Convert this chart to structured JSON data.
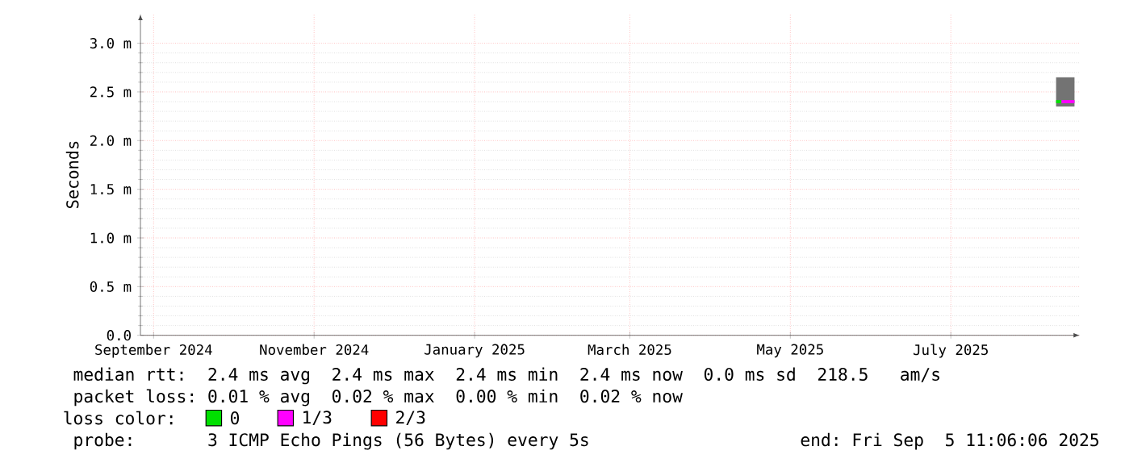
{
  "chart_data": {
    "type": "line",
    "ylabel": "Seconds",
    "series": [
      {
        "name": "0",
        "color": "#00e000",
        "x": [
          "2025-08-10",
          "2025-08-12"
        ],
        "values": [
          2.4,
          2.4
        ]
      },
      {
        "name": "1/3",
        "color": "#ff00ff",
        "x": [
          "2025-08-10",
          "2025-08-12",
          "2025-08-17"
        ],
        "values": [
          null,
          2.4,
          2.4
        ],
        "lower": [
          2.35,
          2.35,
          2.35
        ],
        "upper": [
          2.65,
          2.65,
          2.65
        ]
      },
      {
        "name": "2/3",
        "color": "#ff0000"
      }
    ],
    "xlim": [
      "2024-08-27",
      "2025-08-19"
    ],
    "xticks": [
      {
        "value": "2024-09-01",
        "label": "September 2024"
      },
      {
        "value": "2024-11-01",
        "label": "November 2024"
      },
      {
        "value": "2025-01-01",
        "label": "January 2025"
      },
      {
        "value": "2025-03-01",
        "label": "March 2025"
      },
      {
        "value": "2025-05-01",
        "label": "May 2025"
      },
      {
        "value": "2025-07-01",
        "label": "July 2025"
      }
    ],
    "ylim": [
      0,
      3.3
    ],
    "yticks": [
      {
        "value": 0,
        "label": "0.0"
      },
      {
        "value": 0.5,
        "label": "0.5 m"
      },
      {
        "value": 1.0,
        "label": "1.0 m"
      },
      {
        "value": 1.5,
        "label": "1.5 m"
      },
      {
        "value": 2.0,
        "label": "2.0 m"
      },
      {
        "value": 2.5,
        "label": "2.5 m"
      },
      {
        "value": 3.0,
        "label": "3.0 m"
      }
    ],
    "grid": true,
    "legend": "bottom",
    "legend_title": "loss color:",
    "annotations": [
      "median rtt:  2.4 ms avg  2.4 ms max  2.4 ms min  2.4 ms now  0.0 ms sd  218.5   am/s",
      "packet loss: 0.01 % avg  0.02 % max  0.00 % min  0.02 % now",
      "probe:       3 ICMP Echo Pings (56 Bytes) every 5s",
      "end: Fri Sep  5 11:06:06 2025"
    ]
  }
}
